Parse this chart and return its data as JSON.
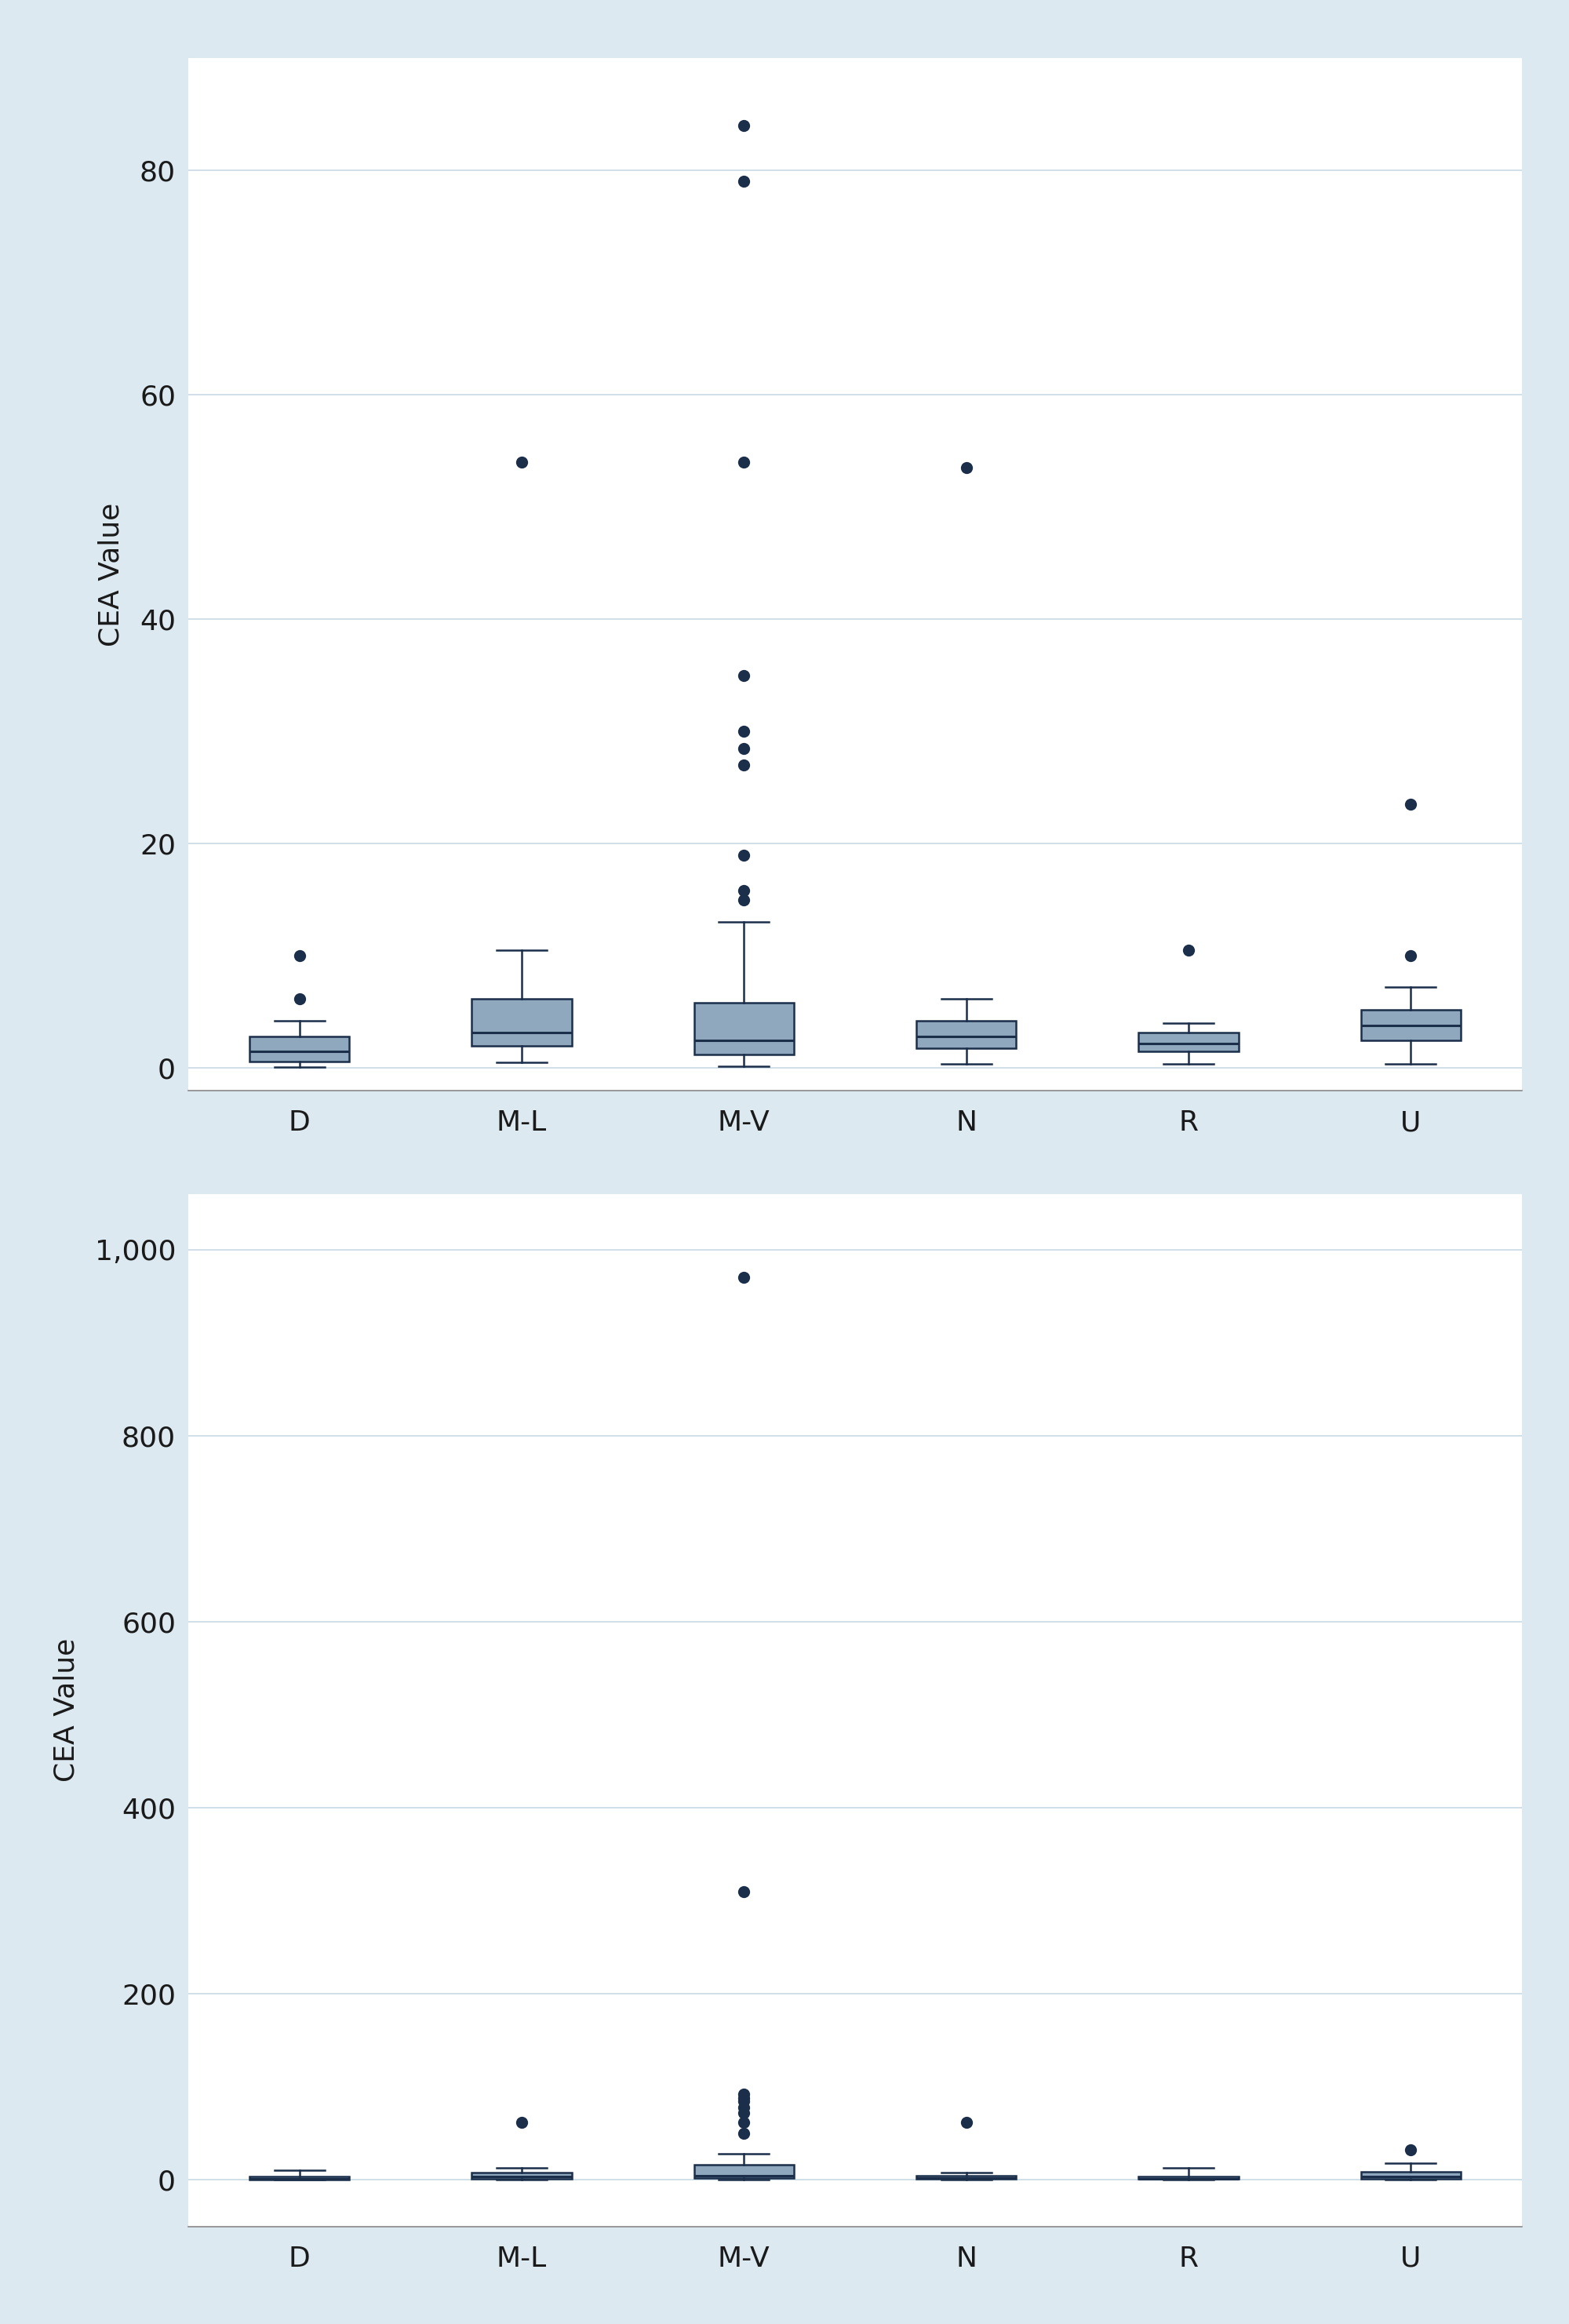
{
  "categories": [
    "D",
    "M-L",
    "M-V",
    "N",
    "R",
    "U"
  ],
  "ylabel": "CEA Value",
  "bg_color": "#dce9f0",
  "plot_bg_color": "#ffffff",
  "box_facecolor": "#8fa8be",
  "box_edgecolor": "#1b2e4a",
  "median_color": "#1b2e4a",
  "whisker_color": "#1b2e4a",
  "flier_facecolor": "#1b2e4a",
  "flier_edgecolor": "#1b2e4a",
  "grid_color": "#cddce6",
  "tick_color": "#1a1a1a",
  "label_color": "#1a1a1a",
  "plot1": {
    "ylim": [
      -2,
      90
    ],
    "yticks": [
      0,
      20,
      40,
      60,
      80
    ],
    "ytick_labels": [
      "0",
      "20",
      "40",
      "60",
      "80"
    ],
    "boxes": [
      {
        "med": 1.5,
        "q1": 0.6,
        "q3": 2.8,
        "whislo": 0.1,
        "whishi": 4.2,
        "fliers": [
          6.2,
          10.0
        ]
      },
      {
        "med": 3.2,
        "q1": 2.0,
        "q3": 6.2,
        "whislo": 0.5,
        "whishi": 10.5,
        "fliers": [
          54.0
        ]
      },
      {
        "med": 2.5,
        "q1": 1.2,
        "q3": 5.8,
        "whislo": 0.2,
        "whishi": 13.0,
        "fliers": [
          15.0,
          15.8,
          19.0,
          27.0,
          28.5,
          30.0,
          35.0,
          54.0,
          79.0,
          84.0
        ]
      },
      {
        "med": 2.8,
        "q1": 1.8,
        "q3": 4.2,
        "whislo": 0.4,
        "whishi": 6.2,
        "fliers": [
          53.5
        ]
      },
      {
        "med": 2.2,
        "q1": 1.5,
        "q3": 3.2,
        "whislo": 0.4,
        "whishi": 4.0,
        "fliers": [
          10.5
        ]
      },
      {
        "med": 3.8,
        "q1": 2.5,
        "q3": 5.2,
        "whislo": 0.4,
        "whishi": 7.2,
        "fliers": [
          10.0,
          23.5
        ]
      }
    ]
  },
  "plot2": {
    "ylim": [
      -50,
      1060
    ],
    "yticks": [
      0,
      200,
      400,
      600,
      800,
      1000
    ],
    "ytick_labels": [
      "0",
      "200",
      "400",
      "600",
      "800",
      "1,000"
    ],
    "boxes": [
      {
        "med": 1.5,
        "q1": 0.5,
        "q3": 3.5,
        "whislo": 0.1,
        "whishi": 10.0,
        "fliers": []
      },
      {
        "med": 3.5,
        "q1": 1.5,
        "q3": 7.5,
        "whislo": 0.5,
        "whishi": 13.0,
        "fliers": [
          62.0
        ]
      },
      {
        "med": 4.5,
        "q1": 2.0,
        "q3": 16.0,
        "whislo": 0.3,
        "whishi": 28.0,
        "fliers": [
          50.0,
          62.0,
          72.0,
          78.0,
          85.0,
          88.0,
          92.0,
          310.0,
          970.0
        ]
      },
      {
        "med": 2.0,
        "q1": 1.0,
        "q3": 4.5,
        "whislo": 0.3,
        "whishi": 8.0,
        "fliers": [
          62.0
        ]
      },
      {
        "med": 1.5,
        "q1": 0.8,
        "q3": 3.5,
        "whislo": 0.3,
        "whishi": 13.0,
        "fliers": []
      },
      {
        "med": 3.5,
        "q1": 1.5,
        "q3": 8.5,
        "whislo": 0.5,
        "whishi": 18.0,
        "fliers": [
          32.0
        ]
      }
    ]
  }
}
